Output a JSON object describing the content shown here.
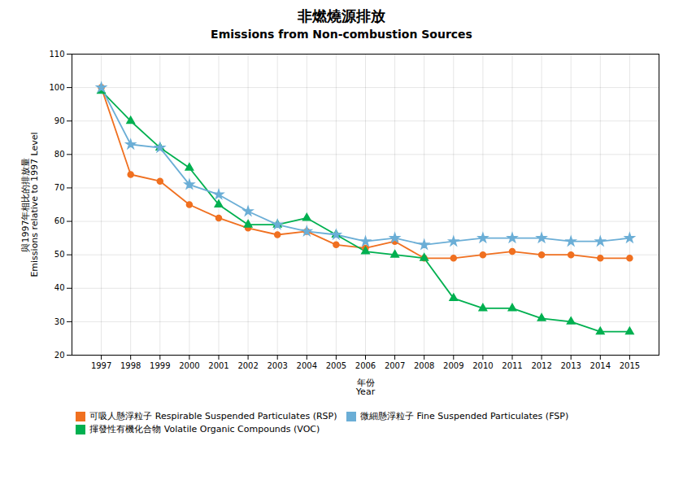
{
  "chart_data": {
    "type": "line",
    "title": "非燃燒源排放",
    "subtitle": "Emissions from Non-combustion Sources",
    "xlabel": "年份\nYear",
    "ylabel": "與1997年相比的排放量\nEmissions relative to 1997 Level",
    "x": [
      1997,
      1998,
      1999,
      2000,
      2001,
      2002,
      2003,
      2004,
      2005,
      2006,
      2007,
      2008,
      2009,
      2010,
      2011,
      2012,
      2013,
      2014,
      2015
    ],
    "xlim": [
      1996,
      2016
    ],
    "xticks": [
      1997,
      1998,
      1999,
      2000,
      2001,
      2002,
      2003,
      2004,
      2005,
      2006,
      2007,
      2008,
      2009,
      2010,
      2011,
      2012,
      2013,
      2014,
      2015
    ],
    "ylim": [
      20,
      110
    ],
    "yticks": [
      20,
      30,
      40,
      50,
      60,
      70,
      80,
      90,
      100,
      110
    ],
    "grid": true,
    "legend": "bottom",
    "series": [
      {
        "name": "可吸人懸浮粒子 Respirable Suspended Particulates (RSP)",
        "color": "#f07020",
        "marker": "circle",
        "values": [
          100,
          74,
          72,
          65,
          61,
          58,
          56,
          57,
          53,
          52,
          54,
          49,
          49,
          50,
          51,
          50,
          50,
          49,
          49
        ]
      },
      {
        "name": "揮發性有機化合物 Volatile Organic Compounds (VOC)",
        "color": "#00b050",
        "marker": "triangle",
        "values": [
          99,
          90,
          82,
          76,
          65,
          59,
          59,
          61,
          56,
          51,
          50,
          49,
          37,
          34,
          34,
          31,
          30,
          27,
          27
        ]
      },
      {
        "name": "微細懸浮粒子 Fine Suspended Particulates (FSP)",
        "color": "#6baed6",
        "marker": "star",
        "values": [
          100,
          83,
          82,
          71,
          68,
          63,
          59,
          57,
          56,
          54,
          55,
          53,
          54,
          55,
          55,
          55,
          54,
          54,
          55
        ]
      }
    ]
  }
}
